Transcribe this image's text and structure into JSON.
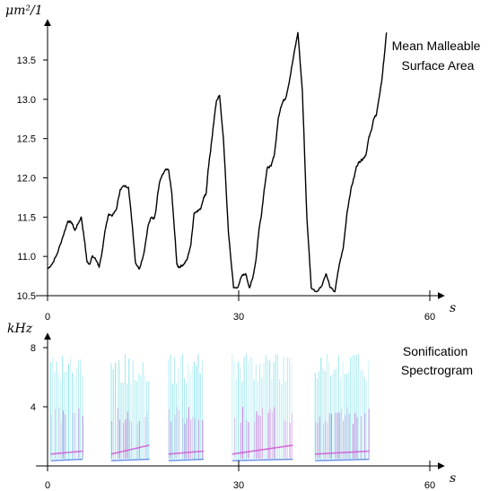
{
  "chart_data": [
    {
      "type": "line",
      "title_lines": [
        "Mean Malleable",
        "Surface Area"
      ],
      "ylabel": "μm²/1",
      "xlabel": "s",
      "xlim": [
        0,
        60
      ],
      "ylim": [
        10.5,
        13.5
      ],
      "xticks": [
        0,
        30,
        60
      ],
      "yticks": [
        10.5,
        11.0,
        11.5,
        12.0,
        12.5,
        13.0,
        13.5
      ],
      "ytick_labels": [
        "10.5",
        "11.0",
        "11.5",
        "12.0",
        "12.5",
        "13.0",
        "13.5"
      ],
      "grid": false,
      "series": [
        {
          "x": [
            0,
            0.7,
            1.5,
            2.4,
            3.2,
            3.8,
            4.3,
            4.8,
            5.3,
            5.8,
            6.2,
            6.6,
            7.0,
            7.4,
            7.8,
            8.1,
            8.5,
            9.0,
            9.6,
            10.2,
            10.8,
            11.4,
            12.0,
            12.7,
            13.3,
            13.8,
            14.4,
            15.1,
            15.8,
            16.3,
            16.7,
            17.0,
            17.3,
            17.6,
            18.0,
            18.5,
            19.0,
            19.5,
            20.0,
            20.3,
            20.6,
            21.0,
            21.4,
            21.9,
            22.5,
            23.0,
            23.5,
            24.0,
            24.5,
            24.9,
            25.2,
            25.6,
            26.0,
            26.5,
            27.0,
            27.6,
            28.4,
            29.2,
            29.8,
            30.5,
            31.1,
            31.7,
            32.2,
            32.7,
            33.2,
            33.6,
            34.0,
            34.5,
            35.1,
            35.6,
            35.9,
            36.2,
            36.6,
            37.0,
            37.4,
            38.0,
            38.6,
            39.3,
            40.0,
            40.7,
            41.4,
            42.2,
            43.0,
            43.7,
            44.4,
            45.1,
            45.8,
            46.4,
            47.0,
            47.6,
            48.1,
            48.5,
            48.9,
            49.2,
            49.6,
            50.0,
            50.4,
            50.8,
            51.2,
            51.6,
            52.0,
            52.4,
            52.8,
            53.2
          ],
          "y": [
            10.84,
            10.9,
            11.03,
            11.25,
            11.45,
            11.43,
            11.33,
            11.42,
            11.5,
            11.2,
            10.93,
            10.9,
            11.0,
            10.98,
            10.93,
            10.86,
            11.02,
            11.32,
            11.54,
            11.52,
            11.6,
            11.85,
            11.9,
            11.88,
            11.4,
            10.92,
            10.84,
            11.03,
            11.4,
            11.5,
            11.48,
            11.58,
            11.8,
            11.95,
            12.03,
            12.1,
            12.1,
            11.8,
            11.25,
            10.9,
            10.86,
            10.88,
            10.9,
            10.96,
            11.15,
            11.55,
            11.58,
            11.6,
            11.75,
            11.8,
            12.1,
            12.35,
            12.65,
            12.98,
            13.05,
            12.5,
            11.3,
            10.6,
            10.6,
            10.75,
            10.78,
            10.6,
            10.72,
            10.95,
            11.35,
            11.55,
            11.85,
            12.13,
            12.15,
            12.3,
            12.5,
            12.75,
            12.9,
            12.98,
            13.02,
            13.25,
            13.54,
            13.85,
            13.1,
            11.5,
            10.6,
            10.55,
            10.62,
            10.78,
            10.6,
            10.55,
            10.9,
            11.1,
            11.55,
            11.85,
            12.0,
            12.15,
            12.2,
            12.22,
            12.25,
            12.3,
            12.5,
            12.6,
            12.75,
            12.8,
            13.0,
            13.2,
            13.5,
            13.85
          ]
        }
      ]
    },
    {
      "type": "heatmap",
      "title_lines": [
        "Sonification",
        "Spectrogram"
      ],
      "ylabel": "kHz",
      "xlabel": "s",
      "xlim": [
        0,
        60
      ],
      "ylim": [
        0,
        8
      ],
      "xticks": [
        0,
        30,
        60
      ],
      "yticks": [
        4,
        8
      ],
      "grid": false,
      "colors": {
        "cyan": "#4fd3e0",
        "magenta": "#d04fd0",
        "blue": "#4a6fe0"
      },
      "bursts": [
        {
          "start": 0.5,
          "end": 5.5
        },
        {
          "start": 10.0,
          "end": 16.0
        },
        {
          "start": 19.0,
          "end": 24.5
        },
        {
          "start": 29.0,
          "end": 38.5
        },
        {
          "start": 42.0,
          "end": 50.5
        }
      ]
    }
  ]
}
